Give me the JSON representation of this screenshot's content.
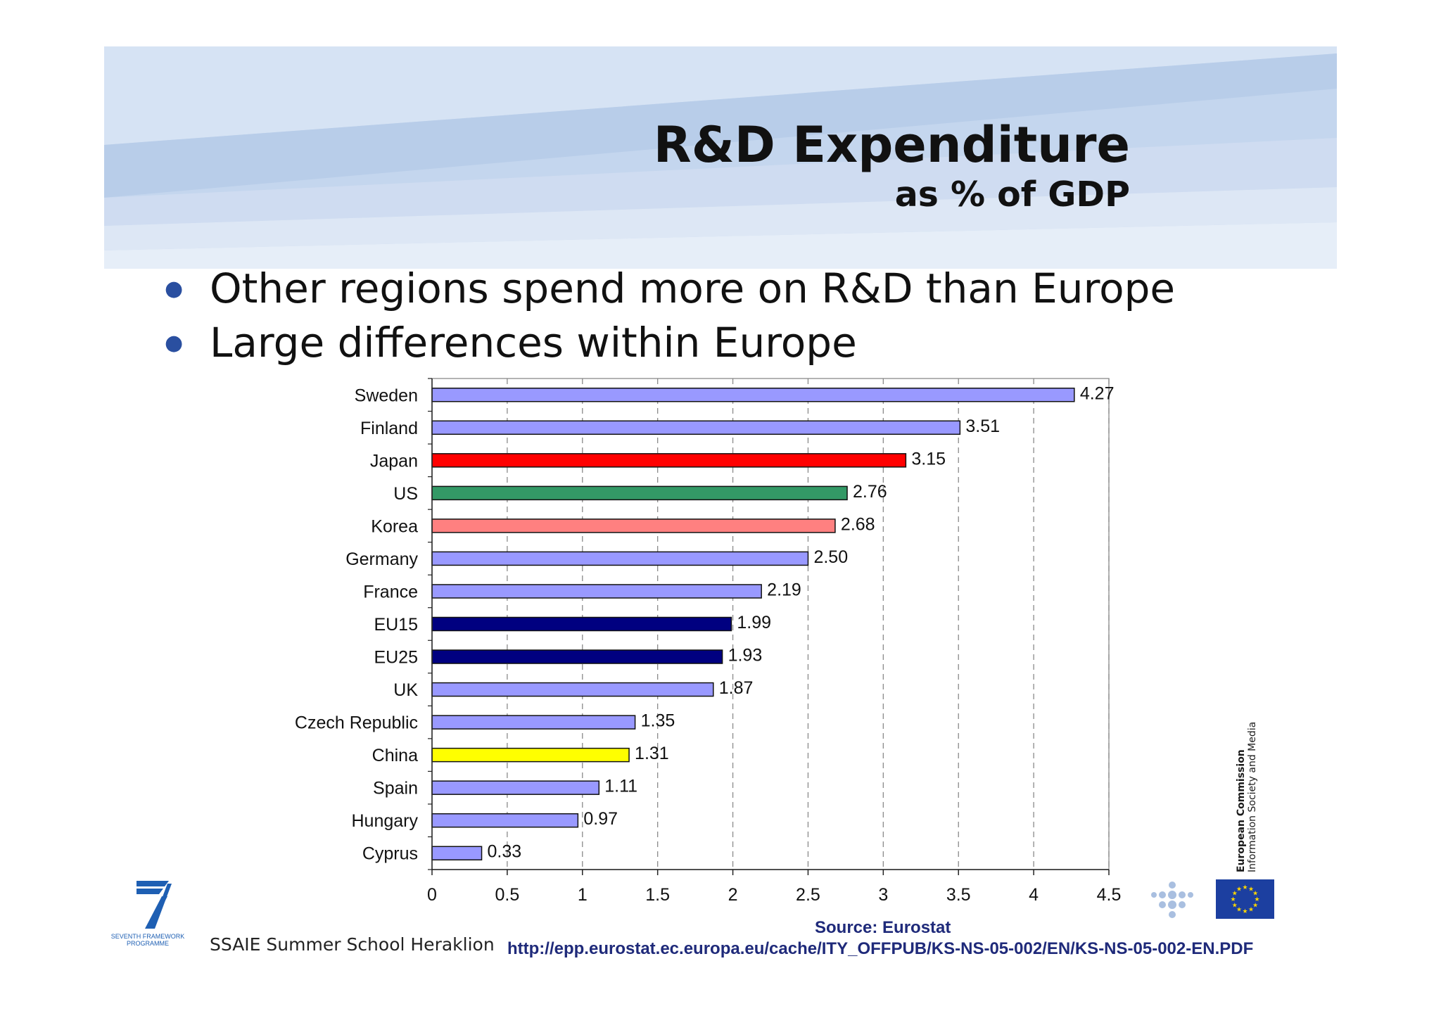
{
  "slide": {
    "title": "R&D Expenditure",
    "subtitle": "as % of GDP",
    "bullets": [
      "Other regions spend more on R&D than Europe",
      "Large differences within Europe"
    ],
    "footer_text": "SSAIE Summer School Heraklion",
    "source_label": "Source: Eurostat",
    "source_url": "http://epp.eurostat.ec.europa.eu/cache/ITY_OFFPUB/KS-NS-05-002/EN/KS-NS-05-002-EN.PDF",
    "fp7_logo_text": [
      "SEVENTH FRAMEWORK",
      "PROGRAMME"
    ],
    "ec_logo_text": [
      "European Commission",
      "Information Society and Media"
    ]
  },
  "colors": {
    "header_band": "#c9daf0",
    "europe_bar": "#9999ff",
    "eu_aggregate_bar": "#000080",
    "japan_bar": "#ff0000",
    "us_bar": "#339966",
    "korea_bar": "#ff8080",
    "china_bar": "#ffff00",
    "source_text": "#1f2a7a",
    "eu_flag": "#1c3fa0"
  },
  "chart_data": {
    "type": "bar",
    "orientation": "horizontal",
    "title": "",
    "xlabel": "",
    "ylabel": "",
    "xlim": [
      0,
      4.5
    ],
    "x_ticks": [
      "0",
      "0.5",
      "1",
      "1.5",
      "2",
      "2.5",
      "3",
      "3.5",
      "4",
      "4.5"
    ],
    "grid": "vertical dashed",
    "legend": "none",
    "categories": [
      "Sweden",
      "Finland",
      "Japan",
      "US",
      "Korea",
      "Germany",
      "France",
      "EU15",
      "EU25",
      "UK",
      "Czech Republic",
      "China",
      "Spain",
      "Hungary",
      "Cyprus"
    ],
    "values": [
      4.27,
      3.51,
      3.15,
      2.76,
      2.68,
      2.5,
      2.19,
      1.99,
      1.93,
      1.87,
      1.35,
      1.31,
      1.11,
      0.97,
      0.33
    ],
    "value_labels": [
      "4.27",
      "3.51",
      "3.15",
      "2.76",
      "2.68",
      "2.50",
      "2.19",
      "1.99",
      "1.93",
      "1.87",
      "1.35",
      "1.31",
      "1.11",
      "0.97",
      "0.33"
    ],
    "bar_colors": [
      "#9999ff",
      "#9999ff",
      "#ff0000",
      "#339966",
      "#ff8080",
      "#9999ff",
      "#9999ff",
      "#000080",
      "#000080",
      "#9999ff",
      "#9999ff",
      "#ffff00",
      "#9999ff",
      "#9999ff",
      "#9999ff"
    ]
  }
}
